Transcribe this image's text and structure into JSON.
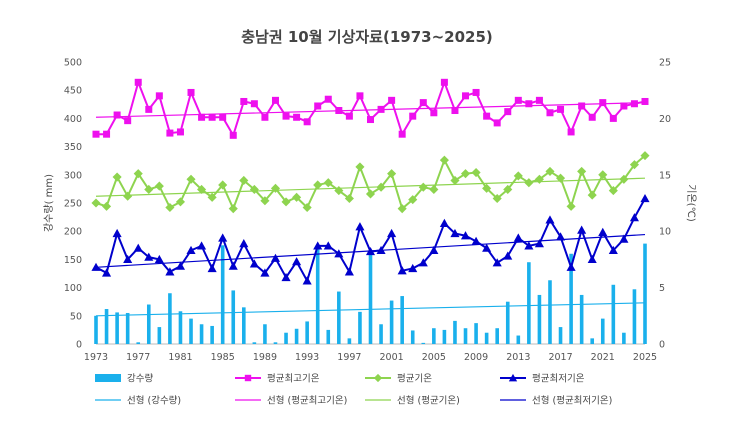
{
  "chart_data": {
    "type": "bar+line",
    "title": "충남권 10월 기상자료(1973~2025)",
    "ylabel_left": "강수량( mm)",
    "ylabel_right": "기온(℃)",
    "ylim_left": [
      0,
      500
    ],
    "ylim_right": [
      0,
      25
    ],
    "yticks_left": [
      "0",
      "50",
      "100",
      "150",
      "200",
      "250",
      "300",
      "350",
      "400",
      "450",
      "500"
    ],
    "yticks_right": [
      "0",
      "5",
      "10",
      "15",
      "20",
      "25"
    ],
    "xlim": [
      1973,
      2025
    ],
    "xticks": [
      "1973",
      "1977",
      "1981",
      "1985",
      "1989",
      "1993",
      "1997",
      "2001",
      "2005",
      "2009",
      "2013",
      "2017",
      "2021",
      "2025"
    ],
    "years": [
      1973,
      1974,
      1975,
      1976,
      1977,
      1978,
      1979,
      1980,
      1981,
      1982,
      1983,
      1984,
      1985,
      1986,
      1987,
      1988,
      1989,
      1990,
      1991,
      1992,
      1993,
      1994,
      1995,
      1996,
      1997,
      1998,
      1999,
      2000,
      2001,
      2002,
      2003,
      2004,
      2005,
      2006,
      2007,
      2008,
      2009,
      2010,
      2011,
      2012,
      2013,
      2014,
      2015,
      2016,
      2017,
      2018,
      2019,
      2020,
      2021,
      2022,
      2023,
      2024,
      2025
    ],
    "series": [
      {
        "name": "강수량",
        "type": "bar",
        "axis": "left",
        "color": "#1ab0ec",
        "values": [
          50,
          62,
          56,
          55,
          3,
          70,
          30,
          90,
          58,
          45,
          35,
          32,
          175,
          95,
          65,
          3,
          35,
          3,
          20,
          27,
          40,
          175,
          25,
          93,
          10,
          57,
          160,
          35,
          77,
          85,
          24,
          2,
          28,
          25,
          41,
          28,
          37,
          20,
          28,
          75,
          15,
          145,
          87,
          113,
          30,
          160,
          87,
          10,
          45,
          105,
          20,
          97,
          178
        ]
      },
      {
        "name": "평균최고기온",
        "type": "line",
        "axis": "right",
        "color": "#ee10ee",
        "marker": "square",
        "values": [
          18.6,
          18.6,
          20.3,
          19.8,
          23.2,
          20.8,
          22.0,
          18.7,
          18.8,
          22.3,
          20.1,
          20.1,
          20.1,
          18.5,
          21.5,
          21.3,
          20.1,
          21.6,
          20.2,
          20.1,
          19.7,
          21.1,
          21.7,
          20.7,
          20.2,
          22.0,
          19.9,
          20.8,
          21.6,
          18.6,
          20.2,
          21.4,
          20.5,
          23.2,
          20.7,
          22.0,
          22.3,
          20.2,
          19.6,
          20.6,
          21.6,
          21.3,
          21.6,
          20.5,
          20.8,
          18.8,
          21.1,
          20.1,
          21.4,
          20.0,
          21.1,
          21.3,
          21.5
        ]
      },
      {
        "name": "평균기온",
        "type": "line",
        "axis": "right",
        "color": "#8ed44f",
        "marker": "diamond",
        "values": [
          12.5,
          12.2,
          14.8,
          13.1,
          15.1,
          13.7,
          14.0,
          12.1,
          12.6,
          14.6,
          13.7,
          13.0,
          14.1,
          12.0,
          14.5,
          13.7,
          12.7,
          13.8,
          12.6,
          13.0,
          12.1,
          14.1,
          14.3,
          13.6,
          12.9,
          15.7,
          13.3,
          13.9,
          15.1,
          12.0,
          12.8,
          13.9,
          13.7,
          16.3,
          14.5,
          15.1,
          15.2,
          13.8,
          12.9,
          13.7,
          14.9,
          14.3,
          14.6,
          15.3,
          14.7,
          12.2,
          15.3,
          13.2,
          15.0,
          13.6,
          14.6,
          15.9,
          16.7
        ]
      },
      {
        "name": "평균최저기온",
        "type": "line",
        "axis": "right",
        "color": "#0000cc",
        "marker": "triangle",
        "values": [
          6.8,
          6.3,
          9.8,
          7.5,
          8.5,
          7.7,
          7.5,
          6.4,
          6.9,
          8.3,
          8.7,
          6.7,
          9.4,
          6.9,
          8.9,
          7.1,
          6.3,
          7.6,
          5.9,
          7.3,
          5.6,
          8.7,
          8.7,
          8.0,
          6.4,
          10.4,
          8.2,
          8.3,
          9.8,
          6.5,
          6.7,
          7.2,
          8.3,
          10.7,
          9.8,
          9.6,
          9.1,
          8.5,
          7.2,
          7.8,
          9.4,
          8.7,
          8.9,
          11.0,
          9.5,
          6.8,
          10.1,
          7.5,
          9.9,
          8.3,
          9.3,
          11.2,
          12.9
        ]
      },
      {
        "name": "선형 (강수량)",
        "type": "trend",
        "axis": "left",
        "color": "#1ab0ec",
        "start": [
          1973,
          50
        ],
        "end": [
          2025,
          73
        ]
      },
      {
        "name": "선형 (평균최고기온)",
        "type": "trend",
        "axis": "right",
        "color": "#ee10ee",
        "start": [
          1973,
          20.1
        ],
        "end": [
          2025,
          21.4
        ]
      },
      {
        "name": "선형 (평균기온)",
        "type": "trend",
        "axis": "right",
        "color": "#8ed44f",
        "start": [
          1973,
          13.1
        ],
        "end": [
          2025,
          14.7
        ]
      },
      {
        "name": "선형 (평균최저기온)",
        "type": "trend",
        "axis": "right",
        "color": "#0000cc",
        "start": [
          1973,
          6.8
        ],
        "end": [
          2025,
          9.7
        ]
      }
    ],
    "legend": [
      {
        "label": "강수량",
        "symbol": "bar",
        "color": "#1ab0ec"
      },
      {
        "label": "평균최고기온",
        "symbol": "square",
        "color": "#ee10ee"
      },
      {
        "label": "평균기온",
        "symbol": "diamond",
        "color": "#8ed44f"
      },
      {
        "label": "평균최저기온",
        "symbol": "triangle",
        "color": "#0000cc"
      },
      {
        "label": "선형 (강수량)",
        "symbol": "line",
        "color": "#1ab0ec"
      },
      {
        "label": "선형 (평균최고기온)",
        "symbol": "line",
        "color": "#ee10ee"
      },
      {
        "label": "선형 (평균기온)",
        "symbol": "line",
        "color": "#8ed44f"
      },
      {
        "label": "선형 (평균최저기온)",
        "symbol": "line",
        "color": "#0000cc"
      }
    ],
    "legend_position": "bottom",
    "grid": false
  }
}
